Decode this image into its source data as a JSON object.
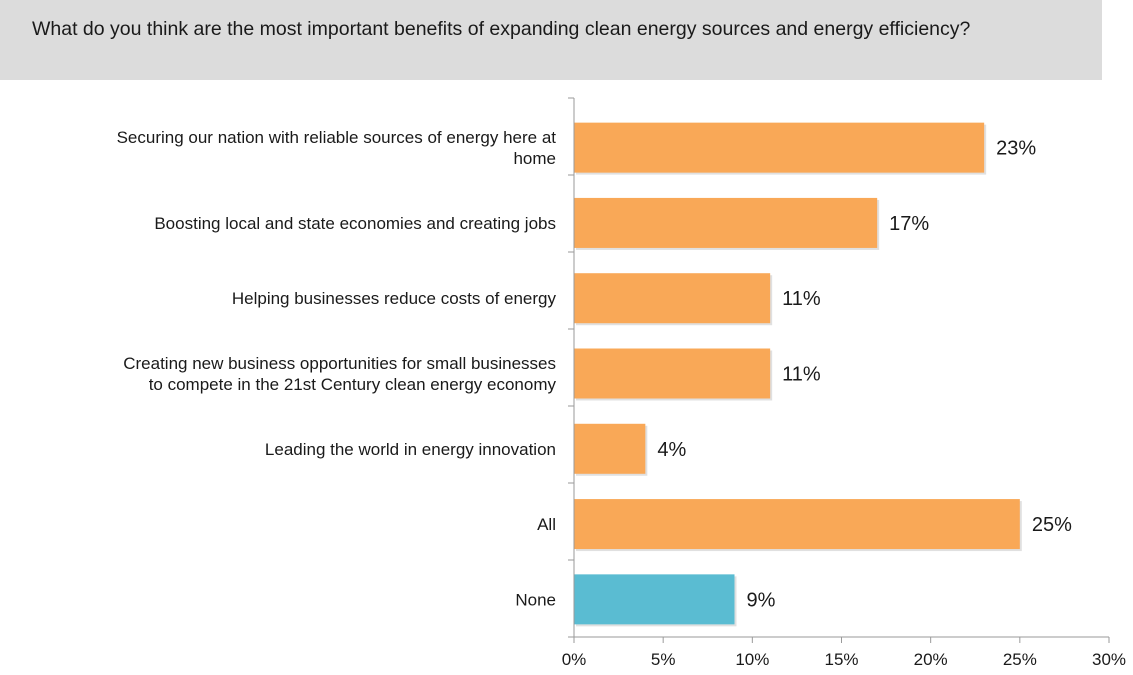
{
  "question": {
    "text": "What do you think are the most important benefits of expanding clean energy sources and energy efficiency?"
  },
  "colors": {
    "bar_primary": "#F9A857",
    "bar_highlight": "#5ABCD2",
    "axis": "#9a9a9a"
  },
  "chart_data": {
    "type": "bar",
    "orientation": "horizontal",
    "title": "",
    "xlabel": "",
    "ylabel": "",
    "xlim": [
      0,
      30
    ],
    "ticks": [
      0,
      5,
      10,
      15,
      20,
      25,
      30
    ],
    "tick_labels": [
      "0%",
      "5%",
      "10%",
      "15%",
      "20%",
      "25%",
      "30%"
    ],
    "grid": false,
    "categories": [
      [
        "Securing our nation with reliable sources of energy here at",
        "home"
      ],
      [
        "Boosting local and state economies and creating jobs"
      ],
      [
        "Helping businesses reduce costs of energy"
      ],
      [
        "Creating new business opportunities for small businesses",
        "to compete in the 21st Century clean energy economy"
      ],
      [
        "Leading the world in energy innovation"
      ],
      [
        "All"
      ],
      [
        "None"
      ]
    ],
    "values": [
      23,
      17,
      11,
      11,
      4,
      25,
      9
    ],
    "value_labels": [
      "23%",
      "17%",
      "11%",
      "11%",
      "4%",
      "25%",
      "9%"
    ],
    "bar_colors": [
      "#F9A857",
      "#F9A857",
      "#F9A857",
      "#F9A857",
      "#F9A857",
      "#F9A857",
      "#5ABCD2"
    ]
  }
}
